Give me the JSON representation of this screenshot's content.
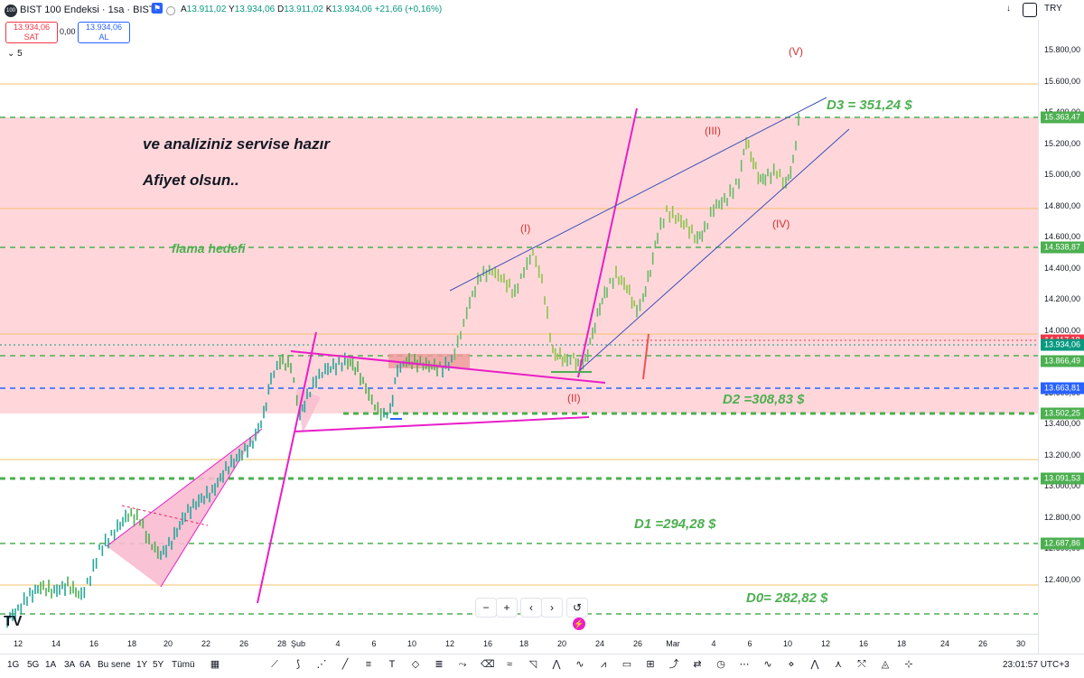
{
  "header": {
    "logo_text": "100",
    "symbol": "BIST 100 Endeksi · 1sa · BIST",
    "open_label": "A",
    "open": "13.911,02",
    "high_label": "Y",
    "high": "13.934,06",
    "low_label": "D",
    "low": "13.911,02",
    "close_label": "K",
    "close": "13.934,06",
    "change": "+21,66 (+0,16%)",
    "currency": "TRY"
  },
  "trade": {
    "sell_price": "13.934,06",
    "sell_label": "SAT",
    "spread": "0,00",
    "buy_price": "13.934,06",
    "buy_label": "AL",
    "collapse_label": "5"
  },
  "price_axis": {
    "labels": [
      "15.800,00",
      "15.600,00",
      "15.400,00",
      "15.200,00",
      "15.000,00",
      "14.800,00",
      "14.600,00",
      "14.400,00",
      "14.200,00",
      "14.000,00",
      "13.800,00",
      "13.600,00",
      "13.400,00",
      "13.200,00",
      "13.000,00",
      "12.800,00",
      "12.600,00",
      "12.400,00"
    ],
    "badges": [
      {
        "text": "15.363,47",
        "color": "#4caf50"
      },
      {
        "text": "14.538,87",
        "color": "#4caf50"
      },
      {
        "text": "14.117,18",
        "color": "#f23645"
      },
      {
        "text": "13.934,06",
        "color": "#089981"
      },
      {
        "text": "13.866,49",
        "color": "#4caf50"
      },
      {
        "text": "13.663,81",
        "color": "#2962ff"
      },
      {
        "text": "13.502,25",
        "color": "#4caf50"
      },
      {
        "text": "13.091,53",
        "color": "#4caf50"
      },
      {
        "text": "12.687,86",
        "color": "#4caf50"
      }
    ]
  },
  "time_axis": {
    "labels": [
      "12",
      "14",
      "16",
      "18",
      "20",
      "22",
      "26",
      "28",
      "Şub",
      "4",
      "6",
      "10",
      "12",
      "16",
      "18",
      "20",
      "24",
      "26",
      "Mar",
      "4",
      "6",
      "10",
      "12",
      "16",
      "18",
      "24",
      "26",
      "30"
    ]
  },
  "annotations": {
    "note1": "ve analiziniz servise hazır",
    "note2": "Afiyet olsun..",
    "flama": "flama hedefi",
    "d3": "D3 = 351,24 $",
    "d2": "D2 =308,83 $",
    "d1": "D1 =294,28 $",
    "d0": "D0= 282,82 $",
    "wave_i": "(I)",
    "wave_ii": "(II)",
    "wave_iii": "(III)",
    "wave_iv": "(IV)",
    "wave_v": "(V)"
  },
  "bottom": {
    "timeframes": [
      "1G",
      "5G",
      "1A",
      "3A",
      "6A",
      "Bu sene",
      "1Y",
      "5Y",
      "Tümü"
    ],
    "clock": "23:01:57 UTC+3"
  },
  "nav": {
    "zoom_out": "−",
    "zoom_in": "+",
    "back": "‹",
    "forward": "›",
    "reset": "↺"
  },
  "watermark": "TV",
  "colors": {
    "zone": "#ffcdd2",
    "green": "#4caf50",
    "magenta": "#e91ec8",
    "blue": "#3f51b5",
    "orange": "#f5c26b"
  }
}
